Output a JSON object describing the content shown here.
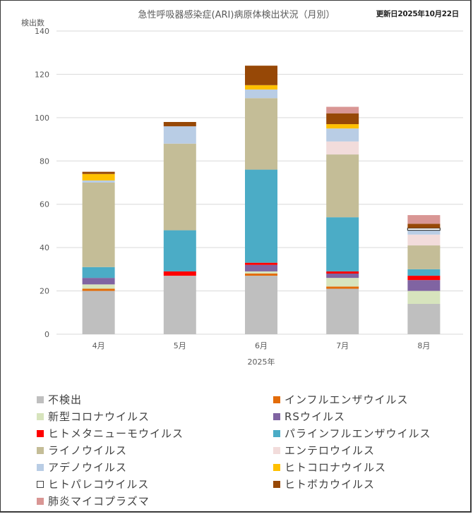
{
  "chart_data": {
    "type": "bar",
    "stacked": true,
    "title": "急性呼吸器感染症(ARI)病原体検出状況（月別）",
    "updated_label": "更新日2025年10月22日",
    "ylabel": "検出数",
    "xlabel": "2025年",
    "ylim": [
      0,
      140
    ],
    "yticks": [
      0,
      20,
      40,
      60,
      80,
      100,
      120,
      140
    ],
    "grid": true,
    "legend_position": "bottom",
    "categories": [
      "4月",
      "5月",
      "6月",
      "7月",
      "8月"
    ],
    "series": [
      {
        "name": "不検出",
        "color": "#bfbfbf",
        "values": [
          20,
          27,
          27,
          21,
          14
        ]
      },
      {
        "name": "インフルエンザウイルス",
        "color": "#e36c09",
        "values": [
          1,
          0,
          1,
          1,
          0
        ]
      },
      {
        "name": "新型コロナウイルス",
        "color": "#d7e4bd",
        "values": [
          2,
          0,
          1,
          4,
          6
        ]
      },
      {
        "name": "RSウイルス",
        "color": "#8064a2",
        "values": [
          3,
          0,
          3,
          2,
          5
        ]
      },
      {
        "name": "ヒトメタニューモウイルス",
        "color": "#ff0000",
        "values": [
          0,
          2,
          1,
          1,
          2
        ]
      },
      {
        "name": "パラインフルエンザウイルス",
        "color": "#4bacc6",
        "values": [
          5,
          19,
          43,
          25,
          3
        ]
      },
      {
        "name": "ライノウイルス",
        "color": "#c4bd97",
        "values": [
          39,
          40,
          33,
          29,
          11
        ]
      },
      {
        "name": "エンテロウイルス",
        "color": "#f2dcdb",
        "values": [
          0,
          0,
          0,
          6,
          5
        ]
      },
      {
        "name": "アデノウイルス",
        "color": "#b9cde5",
        "values": [
          1,
          8,
          4,
          6,
          2
        ]
      },
      {
        "name": "ヒトコロナウイルス",
        "color": "#ffc000",
        "values": [
          3,
          0,
          2,
          2,
          0
        ]
      },
      {
        "name": "ヒトパレコウイルス",
        "color": "#ffffff",
        "outline": "#404040",
        "values": [
          0,
          0,
          0,
          0,
          1
        ]
      },
      {
        "name": "ヒトボカウイルス",
        "color": "#974806",
        "values": [
          1,
          2,
          9,
          5,
          2
        ]
      },
      {
        "name": "肺炎マイコプラズマ",
        "color": "#d99694",
        "values": [
          0,
          0,
          0,
          3,
          4
        ]
      }
    ]
  }
}
